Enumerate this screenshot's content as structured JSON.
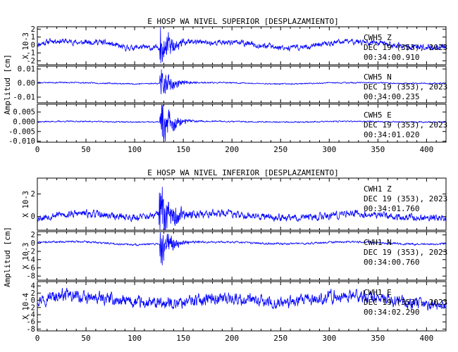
{
  "chart_data": [
    {
      "type": "line",
      "title": "E HOSP WA NIVEL SUPERIOR [DESPLAZAMIENTO]",
      "ylabel": "Amplitud [cm]",
      "xlim": [
        0,
        420
      ],
      "xticks": [
        "0",
        "50",
        "100",
        "150",
        "200",
        "250",
        "300",
        "350",
        "400"
      ],
      "line_color": "#0000ff",
      "traces": [
        {
          "multiplier_label": "X 10-3",
          "info": [
            "CWH5   Z",
            "DEC 19 (353), 2023",
            "00:34:00.910"
          ],
          "ylim": [
            -2.5,
            2.3
          ],
          "yticks": [
            "2",
            "1",
            "0",
            "-1",
            "-2"
          ],
          "signal": {
            "base_amp": 0.55,
            "event_amp": 2.1,
            "event_start": 126,
            "event_decay": 10,
            "drift": 0.6,
            "seed": 11
          },
          "t": [
            0,
            15,
            30,
            45,
            60,
            75,
            90,
            105,
            120,
            126,
            128,
            131,
            135,
            140,
            150,
            165,
            180,
            200,
            225,
            250,
            275,
            300,
            325,
            350,
            375,
            400,
            420
          ],
          "y": [
            0.2,
            0.9,
            0.3,
            -0.2,
            0.7,
            0.5,
            -0.4,
            0.3,
            -0.3,
            0.1,
            2.0,
            -2.3,
            1.6,
            -1.2,
            0.6,
            0.2,
            -0.3,
            0.4,
            0.5,
            0.2,
            -0.1,
            0.0,
            0.3,
            0.2,
            0.0,
            0.2,
            0.1
          ]
        },
        {
          "multiplier_label": "",
          "info": [
            "CWH5   N",
            "DEC 19 (353), 2023",
            "00:34:00.235"
          ],
          "ylim": [
            -0.014,
            0.012
          ],
          "yticks": [
            "0.01",
            "0.00",
            "-0.01"
          ],
          "signal": {
            "base_amp": 0.0007,
            "event_amp": 0.009,
            "event_start": 126,
            "event_decay": 11,
            "drift": 0.0004,
            "seed": 23
          },
          "t": [
            0,
            50,
            100,
            120,
            126,
            128,
            131,
            135,
            140,
            150,
            170,
            200,
            250,
            300,
            350,
            400,
            420
          ],
          "y": [
            0.001,
            0.0,
            -0.001,
            0.0,
            0.0,
            0.008,
            -0.009,
            0.005,
            -0.003,
            0.001,
            0.0,
            0.0,
            -0.001,
            0.0,
            0.0,
            0.0,
            0.0
          ]
        },
        {
          "multiplier_label": "",
          "info": [
            "CWH5   E",
            "DEC 19 (353), 2023",
            "00:34:01.020"
          ],
          "ylim": [
            -0.0105,
            0.009
          ],
          "yticks": [
            "0.005",
            "0.000",
            "-0.005",
            "-0.010"
          ],
          "signal": {
            "base_amp": 0.0005,
            "event_amp": 0.0085,
            "event_start": 126,
            "event_decay": 11,
            "drift": 0.0003,
            "seed": 37
          },
          "t": [
            0,
            50,
            100,
            120,
            126,
            128,
            131,
            135,
            140,
            150,
            170,
            200,
            250,
            300,
            350,
            400,
            420
          ],
          "y": [
            0.0,
            0.0,
            0.0,
            0.0,
            0.0,
            0.008,
            -0.009,
            0.006,
            -0.004,
            0.001,
            0.0,
            0.0,
            0.0,
            0.0,
            0.0,
            0.0,
            0.0
          ]
        }
      ]
    },
    {
      "type": "line",
      "title": "E HOSP WA NIVEL INFERIOR [DESPLAZAMIENTO]",
      "ylabel": "Amplitud [cm]",
      "xlim": [
        0,
        420
      ],
      "xticks": [
        "0",
        "50",
        "100",
        "150",
        "200",
        "250",
        "300",
        "350",
        "400"
      ],
      "line_color": "#0000ff",
      "traces": [
        {
          "multiplier_label": "X 10-3",
          "info": [
            "CWH1   Z",
            "DEC 19 (353), 2023",
            "00:34:01.760"
          ],
          "ylim": [
            -1.2,
            3.4
          ],
          "yticks": [
            "2",
            "0"
          ],
          "signal": {
            "base_amp": 0.5,
            "event_amp": 1.7,
            "event_start": 125,
            "event_decay": 14,
            "drift": 0.3,
            "seed": 53
          },
          "t": [
            0,
            20,
            50,
            100,
            120,
            125,
            128,
            131,
            135,
            140,
            150,
            175,
            200,
            250,
            300,
            350,
            400,
            420
          ],
          "y": [
            -0.3,
            0.0,
            0.3,
            0.3,
            0.6,
            1.2,
            3.0,
            -0.6,
            2.0,
            0.4,
            0.5,
            0.2,
            0.3,
            0.2,
            0.0,
            0.3,
            0.3,
            0.3
          ]
        },
        {
          "multiplier_label": "X 10-3",
          "info": [
            "CWH1   N",
            "DEC 19 (353), 2023",
            "00:34:00.760"
          ],
          "ylim": [
            -9,
            2.8
          ],
          "yticks": [
            "2",
            "0",
            "-2",
            "-4",
            "-6",
            "-8"
          ],
          "signal": {
            "base_amp": 0.35,
            "event_amp": 3.8,
            "event_start": 126,
            "event_decay": 10,
            "drift": 0.4,
            "seed": 71
          },
          "t": [
            0,
            50,
            100,
            120,
            126,
            127,
            129,
            131,
            135,
            140,
            150,
            175,
            200,
            250,
            300,
            350,
            400,
            420
          ],
          "y": [
            0.5,
            0.3,
            -0.5,
            0.0,
            0.0,
            -8.5,
            2.5,
            -3.0,
            1.5,
            -1.0,
            0.3,
            0.0,
            0.2,
            0.3,
            0.2,
            0.0,
            -0.2,
            0.0
          ]
        },
        {
          "multiplier_label": "X 10-4",
          "info": [
            "CWH1   E",
            "DEC 19 (353), 2023",
            "00:34:02.290"
          ],
          "ylim": [
            -8.5,
            5.2
          ],
          "yticks": [
            "4",
            "2",
            "0",
            "-2",
            "-4",
            "-6",
            "-8"
          ],
          "signal": {
            "base_amp": 2.6,
            "event_amp": 0.0,
            "event_start": 126,
            "event_decay": 10,
            "drift": 1.4,
            "seed": 97
          },
          "t": [
            0,
            25,
            50,
            75,
            100,
            125,
            150,
            175,
            200,
            225,
            250,
            275,
            300,
            325,
            350,
            375,
            400,
            420
          ],
          "y": [
            1.0,
            2.0,
            -0.5,
            1.0,
            0.5,
            -1.0,
            -2.0,
            -1.0,
            0.0,
            0.0,
            0.5,
            1.0,
            1.5,
            1.0,
            0.5,
            0.0,
            -1.5,
            -2.0
          ]
        }
      ]
    }
  ]
}
